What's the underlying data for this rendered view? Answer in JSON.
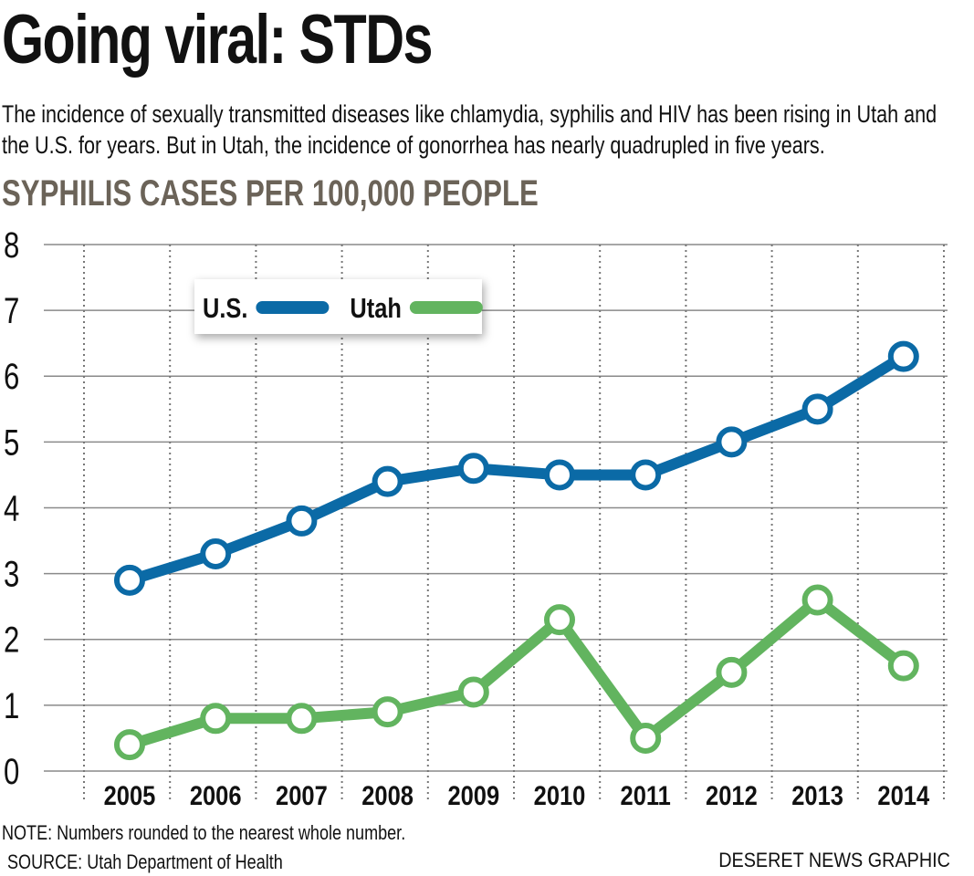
{
  "header": {
    "title": "Going viral: STDs",
    "subtitle": "The incidence of sexually transmitted diseases like chlamydia, syphilis and HIV has been rising in Utah and the U.S. for years. But in Utah, the incidence of gonorrhea has nearly quadrupled in five years."
  },
  "chart_data": {
    "type": "line",
    "title": "SYPHILIS CASES PER 100,000 PEOPLE",
    "xlabel": "",
    "ylabel": "",
    "categories": [
      "2005",
      "2006",
      "2007",
      "2008",
      "2009",
      "2010",
      "2011",
      "2012",
      "2013",
      "2014"
    ],
    "y_ticks": [
      "0",
      "1",
      "2",
      "3",
      "4",
      "5",
      "6",
      "7",
      "8"
    ],
    "ylim": [
      0,
      8
    ],
    "grid": true,
    "legend_position": "top-left",
    "series": [
      {
        "name": "U.S.",
        "color": "#0b6aa6",
        "values": [
          2.9,
          3.3,
          3.8,
          4.4,
          4.6,
          4.5,
          4.5,
          5.0,
          5.5,
          6.3
        ]
      },
      {
        "name": "Utah",
        "color": "#62b45f",
        "values": [
          0.4,
          0.8,
          0.8,
          0.9,
          1.2,
          2.3,
          0.5,
          1.5,
          2.6,
          1.6
        ]
      }
    ]
  },
  "footer": {
    "note": "NOTE: Numbers rounded to the nearest whole number.",
    "source": "SOURCE:  Utah Department of Health",
    "credit": "DESERET NEWS GRAPHIC"
  }
}
